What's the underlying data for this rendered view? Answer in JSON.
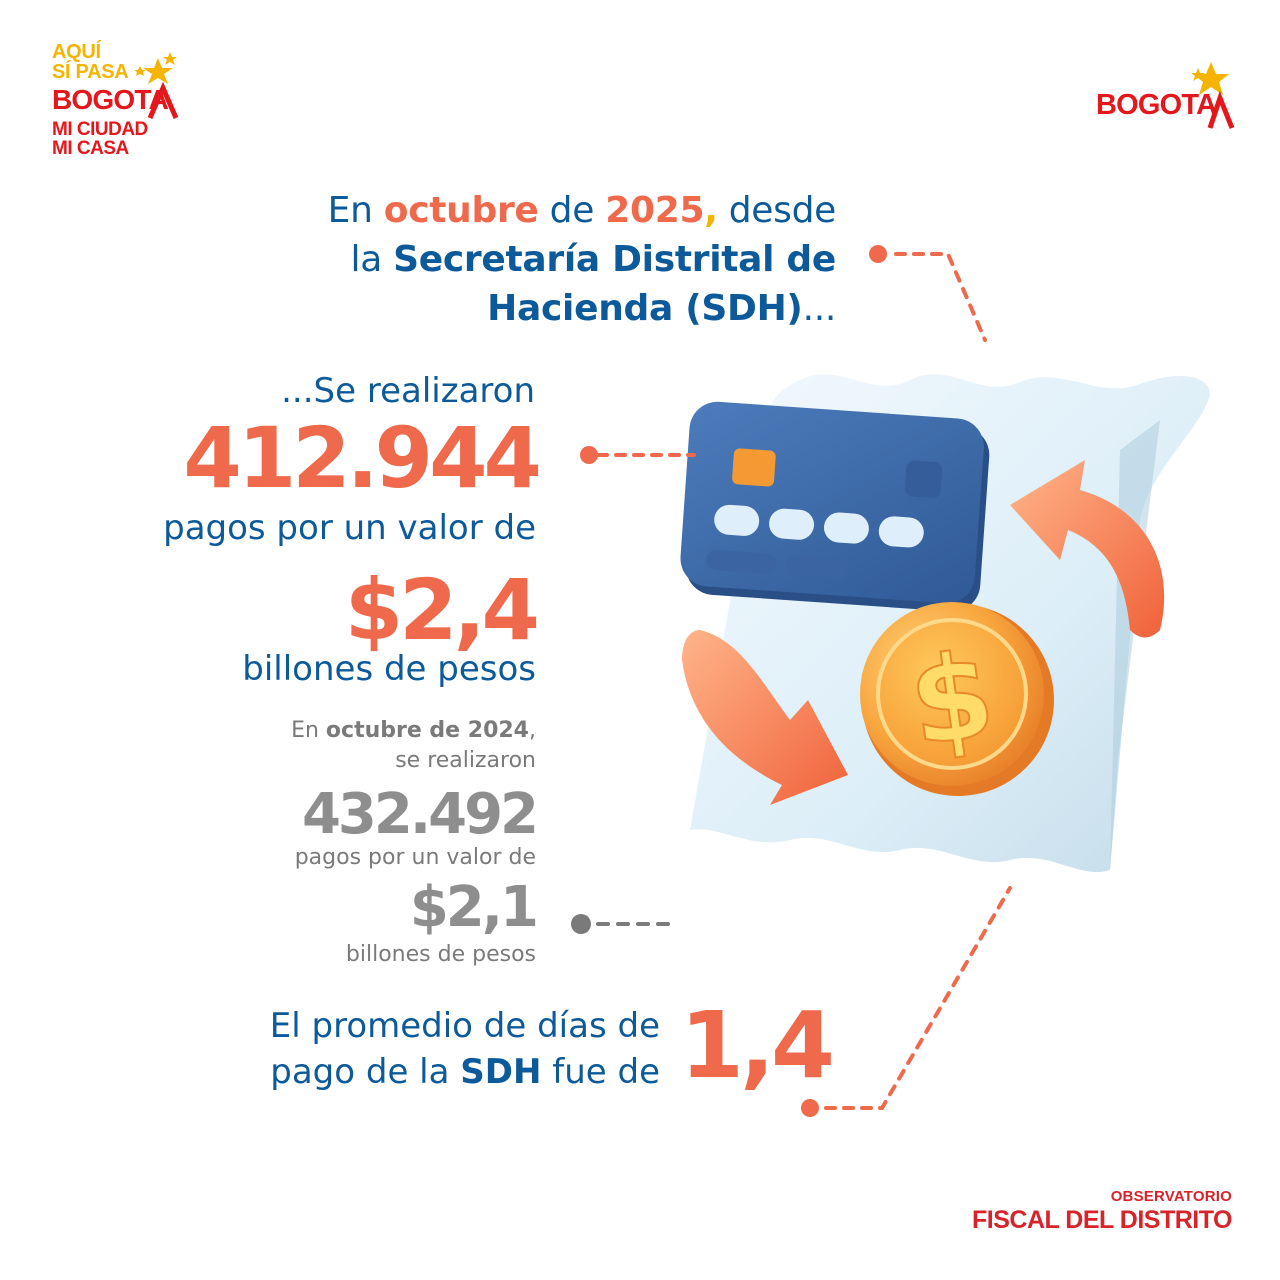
{
  "logo_left": {
    "line1": "AQUÍ",
    "line2": "SÍ PASA",
    "line3": "BOGOTA",
    "line4": "MI CIUDAD",
    "line5": "MI CASA"
  },
  "logo_right": {
    "word": "BOGOTA"
  },
  "intro": {
    "p1": "En ",
    "month": "octubre",
    "p2": " de ",
    "year": "2025",
    "comma": ",",
    "p3": " desde",
    "p4": "la ",
    "entity_a": "Secretaría Distrital de",
    "entity_b": "Hacienda (SDH)",
    "ellipsis": "..."
  },
  "current": {
    "lead": "...Se realizaron",
    "payments": "412.944",
    "value_lead": "pagos por un valor de",
    "value": "$2,4",
    "unit": "billones de pesos"
  },
  "previous": {
    "p1": "En ",
    "period": "octubre de 2024",
    "p2": ",",
    "p3": "se realizaron",
    "payments": "432.492",
    "value_lead": "pagos por un valor de",
    "value": "$2,1",
    "unit": "billones de pesos"
  },
  "average": {
    "line1": "El promedio de días de",
    "p2": "pago de la ",
    "entity": "SDH",
    "p3": " fue de",
    "value": "1,4"
  },
  "footer": {
    "line1": "OBSERVATORIO",
    "line2": "FISCAL DEL DISTRITO"
  },
  "colors": {
    "blue": "#0d5a9a",
    "orange": "#ef6a4c",
    "gray": "#7a7a7a",
    "red": "#e3171c",
    "yellow": "#f4b400",
    "card": "#3d6aa8",
    "coin": "#f8a63e"
  },
  "icons": [
    "credit-card-icon",
    "coin-dollar-icon",
    "exchange-arrows-icon",
    "receipt-icon",
    "star-icon"
  ]
}
